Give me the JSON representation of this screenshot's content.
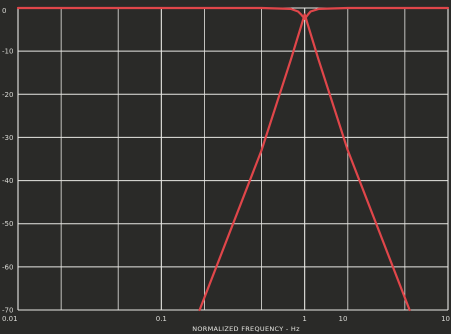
{
  "chart_data": {
    "type": "line",
    "title": "",
    "xlabel": "NORMALIZED FREQUENCY - Hz",
    "ylabel": "",
    "x_scale": "log",
    "xlim": [
      0.01,
      10
    ],
    "ylim": [
      -70,
      0
    ],
    "x_ticks": [
      "0.01",
      "0.1",
      "1",
      "10",
      "10"
    ],
    "y_ticks": [
      "0",
      "-10",
      "-20",
      "-30",
      "-40",
      "-50",
      "-60",
      "-70"
    ],
    "grid": true,
    "colors": {
      "background": "#2a2a28",
      "grid": "#e8e8e4",
      "curve": "#e0464a"
    },
    "series": [
      {
        "x": [
          0.01,
          0.1,
          0.5,
          0.8,
          0.9,
          0.95,
          1.0,
          1.05,
          1.1,
          1.25,
          2,
          5,
          10
        ],
        "values": [
          0,
          0,
          0,
          -0.2,
          -0.8,
          -1.6,
          -2.5,
          -1.6,
          -0.8,
          -0.2,
          0,
          0,
          0
        ]
      },
      {
        "x": [
          0.185,
          0.5,
          0.8,
          1.0,
          1.25,
          2,
          5.4
        ],
        "values": [
          -70,
          -33,
          -12,
          -1.5,
          -12,
          -33,
          -70
        ]
      }
    ]
  }
}
